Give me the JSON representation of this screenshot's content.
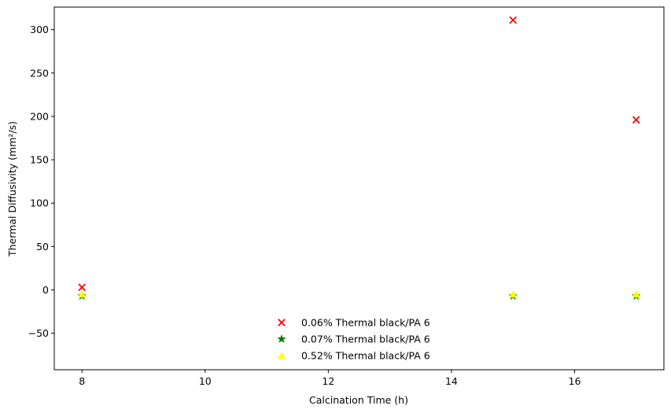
{
  "chart_data": {
    "type": "scatter",
    "title": "",
    "xlabel": "Calcination Time (h)",
    "ylabel": "Thermal Diffusivity (mm²/s)",
    "xlim": [
      7.55,
      17.45
    ],
    "ylim": [
      -92,
      326
    ],
    "xticks": [
      8,
      10,
      12,
      14,
      16
    ],
    "xtick_labels": [
      "8",
      "10",
      "12",
      "14",
      "16"
    ],
    "yticks": [
      -50,
      0,
      50,
      100,
      150,
      200,
      250,
      300
    ],
    "ytick_labels": [
      "−50",
      "0",
      "50",
      "100",
      "150",
      "200",
      "250",
      "300"
    ],
    "grid": false,
    "legend_position": "lower center",
    "series": [
      {
        "name": "0.06% Thermal black/PA 6",
        "marker": "x",
        "color": "#ff0000",
        "points": [
          {
            "x": 8,
            "y": 3
          },
          {
            "x": 15,
            "y": 311
          },
          {
            "x": 17,
            "y": 196
          }
        ]
      },
      {
        "name": "0.07% Thermal black/PA 6",
        "marker": "star",
        "color": "#008000",
        "points": [
          {
            "x": 8,
            "y": -7
          },
          {
            "x": 15,
            "y": -7
          },
          {
            "x": 17,
            "y": -7
          }
        ]
      },
      {
        "name": "0.52% Thermal black/PA 6",
        "marker": "triangle",
        "color": "#ffff00",
        "points": [
          {
            "x": 8,
            "y": -5
          },
          {
            "x": 15,
            "y": -5
          },
          {
            "x": 17,
            "y": -5
          }
        ]
      }
    ]
  }
}
